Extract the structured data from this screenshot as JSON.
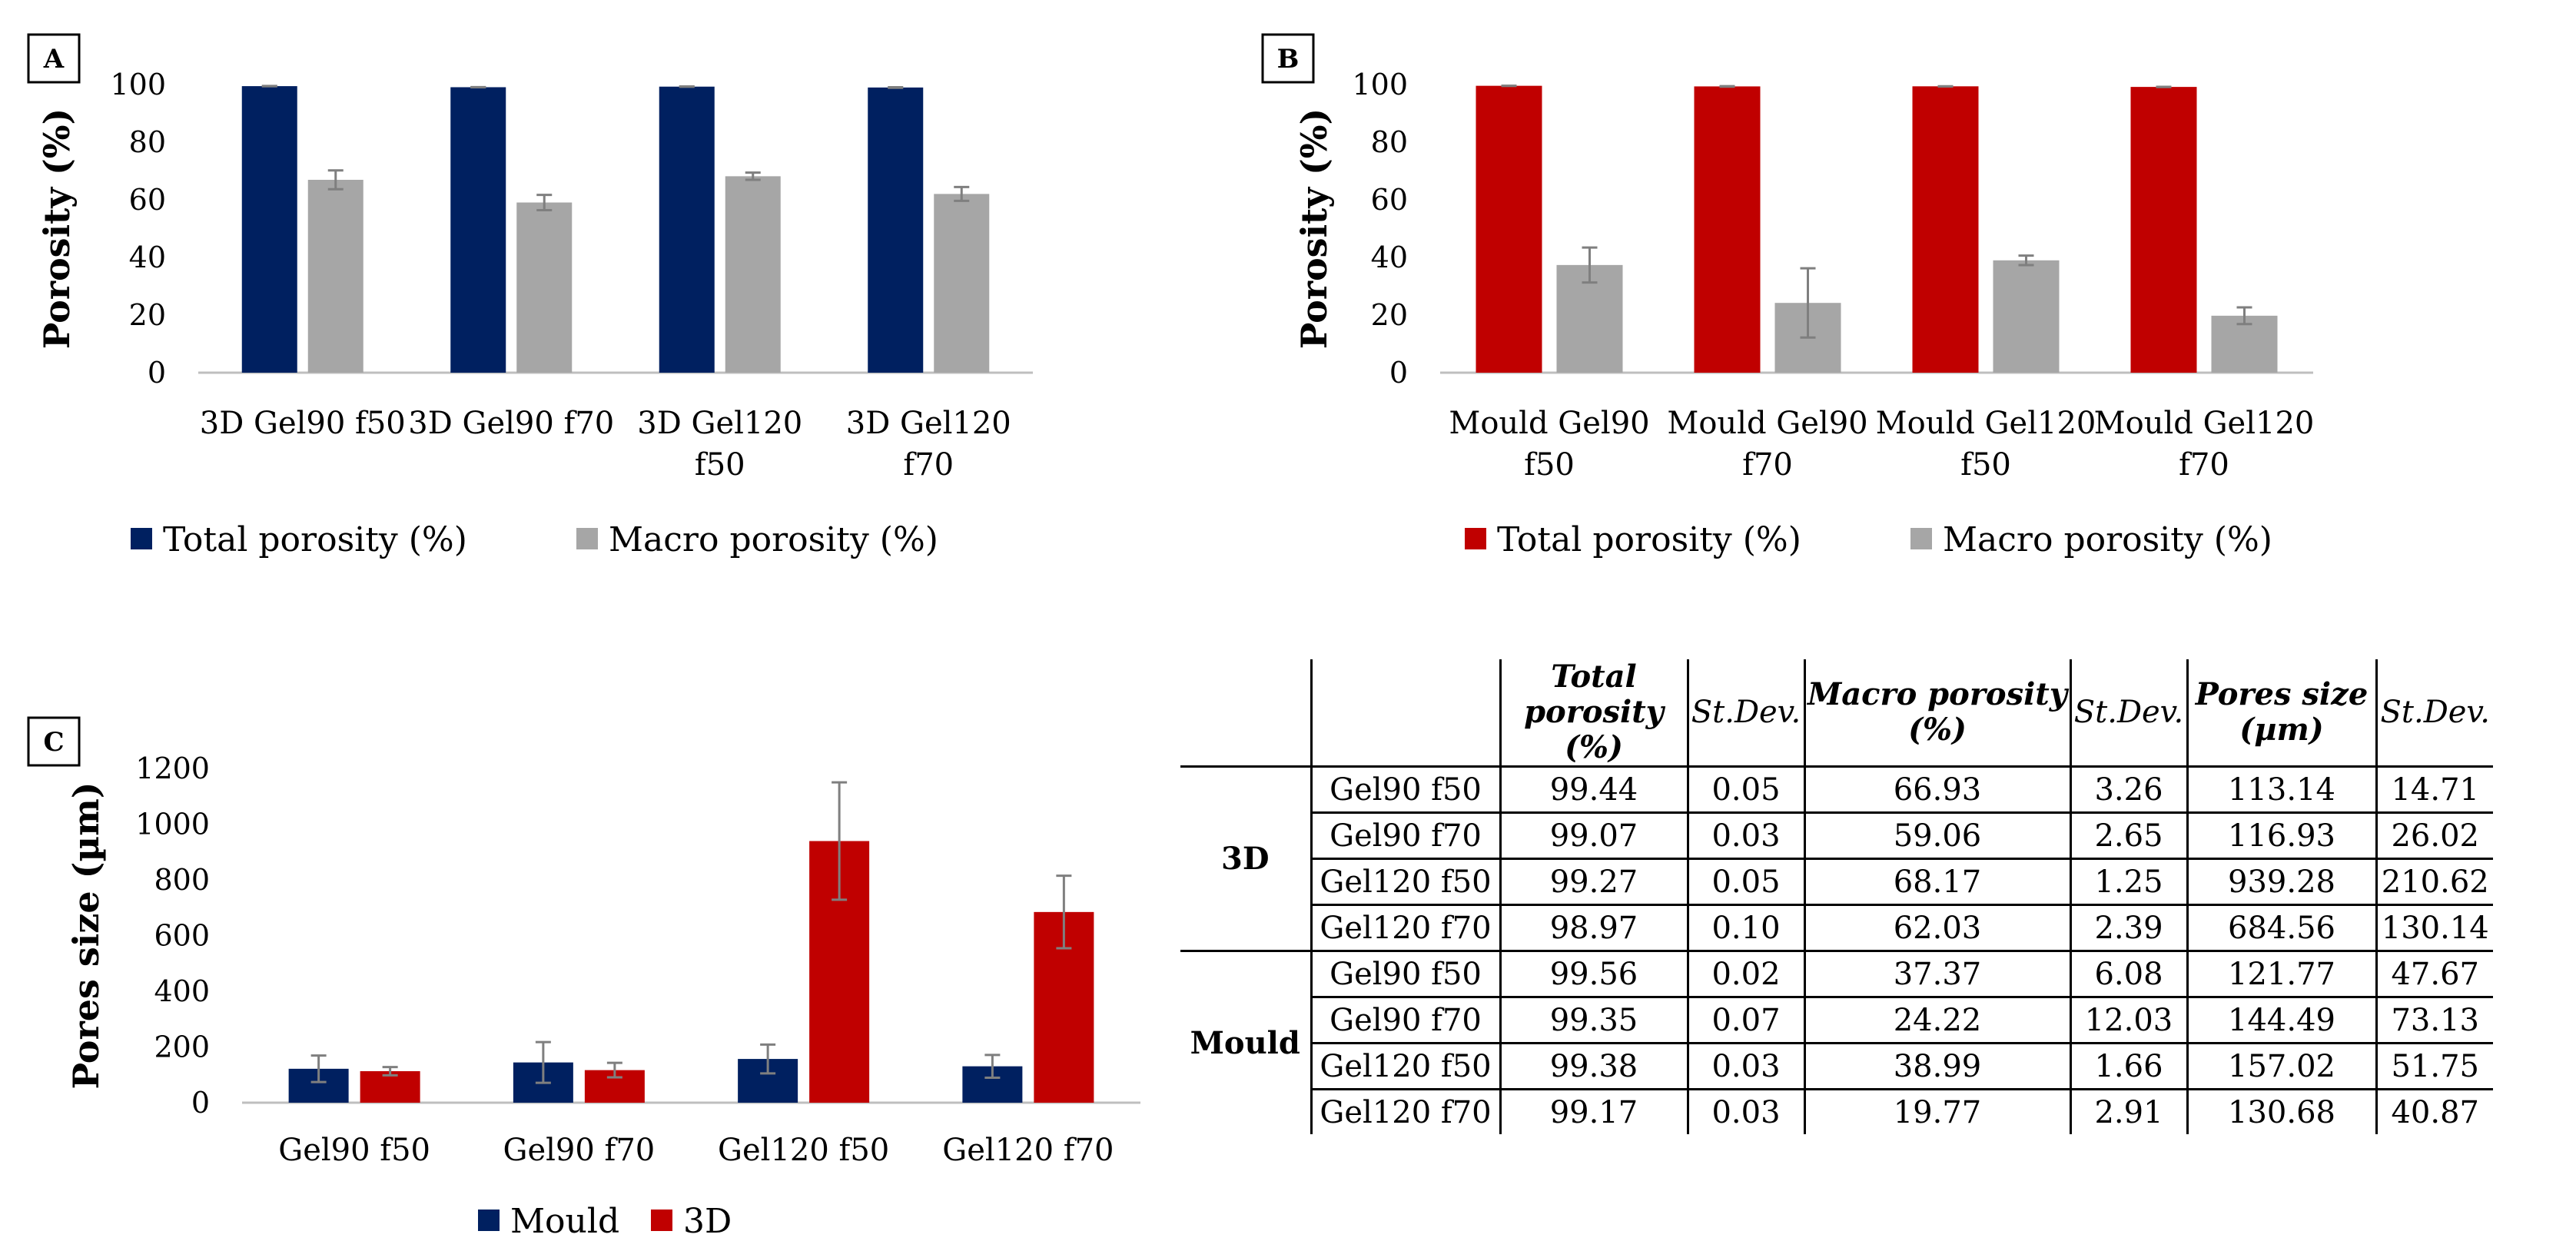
{
  "chart_data": [
    {
      "panel": "A",
      "type": "bar",
      "categories": [
        "3D Gel90 f50",
        "3D Gel90 f70",
        "3D Gel120 f50",
        "3D Gel120 f70"
      ],
      "category_lines": [
        [
          "3D Gel90 f50"
        ],
        [
          "3D Gel90 f70"
        ],
        [
          "3D Gel120",
          "f50"
        ],
        [
          "3D Gel120",
          "f70"
        ]
      ],
      "series": [
        {
          "name": "Total porosity (%)",
          "color": "#002060",
          "values": [
            99.44,
            99.07,
            99.27,
            98.97
          ],
          "errors": [
            0.05,
            0.03,
            0.05,
            0.1
          ]
        },
        {
          "name": "Macro porosity (%)",
          "color": "#a6a6a6",
          "values": [
            66.93,
            59.06,
            68.17,
            62.03
          ],
          "errors": [
            3.26,
            2.65,
            1.25,
            2.39
          ]
        }
      ],
      "ylabel": "Porosity (%)",
      "ylim": [
        0,
        100
      ],
      "yticks": [
        0,
        20,
        40,
        60,
        80,
        100
      ]
    },
    {
      "panel": "B",
      "type": "bar",
      "categories": [
        "Mould Gel90 f50",
        "Mould Gel90 f70",
        "Mould Gel120 f50",
        "Mould Gel120 f70"
      ],
      "category_lines": [
        [
          "Mould Gel90",
          "f50"
        ],
        [
          "Mould Gel90",
          "f70"
        ],
        [
          "Mould Gel120",
          "f50"
        ],
        [
          "Mould Gel120",
          "f70"
        ]
      ],
      "series": [
        {
          "name": "Total porosity (%)",
          "color": "#c00000",
          "values": [
            99.56,
            99.35,
            99.38,
            99.17
          ],
          "errors": [
            0.02,
            0.07,
            0.03,
            0.03
          ]
        },
        {
          "name": "Macro porosity (%)",
          "color": "#a6a6a6",
          "values": [
            37.37,
            24.22,
            38.99,
            19.77
          ],
          "errors": [
            6.08,
            12.03,
            1.66,
            2.91
          ]
        }
      ],
      "ylabel": "Porosity (%)",
      "ylim": [
        0,
        100
      ],
      "yticks": [
        0,
        20,
        40,
        60,
        80,
        100
      ]
    },
    {
      "panel": "C",
      "type": "bar",
      "categories": [
        "Gel90 f50",
        "Gel90 f70",
        "Gel120 f50",
        "Gel120 f70"
      ],
      "category_lines": [
        [
          "Gel90 f50"
        ],
        [
          "Gel90 f70"
        ],
        [
          "Gel120 f50"
        ],
        [
          "Gel120 f70"
        ]
      ],
      "series": [
        {
          "name": "Mould",
          "color": "#002060",
          "values": [
            121.77,
            144.49,
            157.02,
            130.68
          ],
          "errors": [
            47.67,
            73.13,
            51.75,
            40.87
          ]
        },
        {
          "name": "3D",
          "color": "#c00000",
          "values": [
            113.14,
            116.93,
            939.28,
            684.56
          ],
          "errors": [
            14.71,
            26.02,
            210.62,
            130.14
          ]
        }
      ],
      "ylabel": "Pores size (µm)",
      "ylim": [
        0,
        1200
      ],
      "yticks": [
        0,
        200,
        400,
        600,
        800,
        1000,
        1200
      ]
    }
  ],
  "table": {
    "headers": {
      "total": [
        "Total porosity",
        "(%)"
      ],
      "sd1": "St.Dev.",
      "macro": [
        "Macro porosity",
        "(%)"
      ],
      "sd2": "St.Dev.",
      "pores": [
        "Pores size",
        "(µm)"
      ],
      "sd3": "St.Dev."
    },
    "groups": [
      {
        "name": "3D",
        "rows": [
          [
            "Gel90 f50",
            "99.44",
            "0.05",
            "66.93",
            "3.26",
            "113.14",
            "14.71"
          ],
          [
            "Gel90 f70",
            "99.07",
            "0.03",
            "59.06",
            "2.65",
            "116.93",
            "26.02"
          ],
          [
            "Gel120 f50",
            "99.27",
            "0.05",
            "68.17",
            "1.25",
            "939.28",
            "210.62"
          ],
          [
            "Gel120 f70",
            "98.97",
            "0.10",
            "62.03",
            "2.39",
            "684.56",
            "130.14"
          ]
        ]
      },
      {
        "name": "Mould",
        "rows": [
          [
            "Gel90 f50",
            "99.56",
            "0.02",
            "37.37",
            "6.08",
            "121.77",
            "47.67"
          ],
          [
            "Gel90 f70",
            "99.35",
            "0.07",
            "24.22",
            "12.03",
            "144.49",
            "73.13"
          ],
          [
            "Gel120 f50",
            "99.38",
            "0.03",
            "38.99",
            "1.66",
            "157.02",
            "51.75"
          ],
          [
            "Gel120 f70",
            "99.17",
            "0.03",
            "19.77",
            "2.91",
            "130.68",
            "40.87"
          ]
        ]
      }
    ]
  }
}
